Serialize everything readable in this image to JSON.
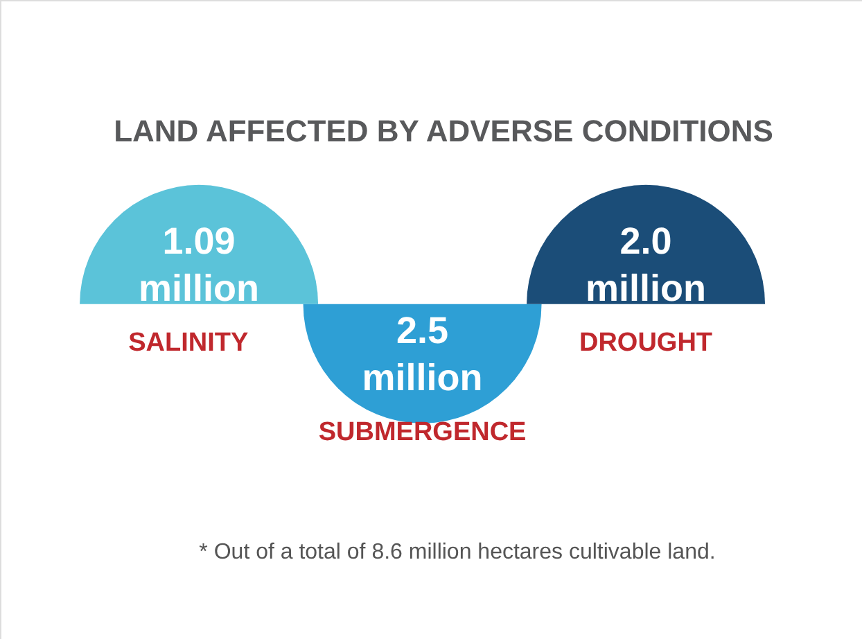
{
  "chart_data": {
    "type": "other",
    "title": "LAND AFFECTED BY ADVERSE CONDITIONS",
    "categories": [
      "SALINITY",
      "SUBMERGENCE",
      "DROUGHT"
    ],
    "values": [
      1.09,
      2.5,
      2.0
    ],
    "value_labels": [
      "1.09 million",
      "2.5 million",
      "2.0 million"
    ],
    "colors": [
      "#5bc3d9",
      "#2e9fd5",
      "#1b4d78"
    ],
    "annotations": [
      "* Out of a total of 8.6 million hectares cultivable land."
    ]
  }
}
